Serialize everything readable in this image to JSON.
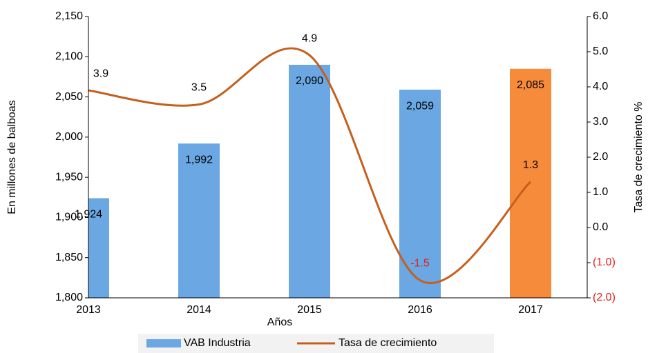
{
  "chart_data": {
    "type": "bar_line",
    "x_label": "Años",
    "y_label": "En millones de balboas",
    "y2_label": "Tasa de crecimiento %",
    "categories": [
      "2013",
      "2014",
      "2015",
      "2016",
      "2017"
    ],
    "ylim": [
      1800,
      2150
    ],
    "yticks": [
      {
        "value": 1800,
        "label": "1,800"
      },
      {
        "value": 1850,
        "label": "1,850"
      },
      {
        "value": 1900,
        "label": "1,900"
      },
      {
        "value": 1950,
        "label": "1,950"
      },
      {
        "value": 2000,
        "label": "2,000"
      },
      {
        "value": 2050,
        "label": "2,050"
      },
      {
        "value": 2100,
        "label": "2,100"
      },
      {
        "value": 2150,
        "label": "2,150"
      }
    ],
    "y2lim": [
      -2,
      6
    ],
    "y2ticks": [
      {
        "value": -2,
        "label": "(2.0)"
      },
      {
        "value": -1,
        "label": "(1.0)"
      },
      {
        "value": 0,
        "label": "0.0"
      },
      {
        "value": 1,
        "label": "1.0"
      },
      {
        "value": 2,
        "label": "2.0"
      },
      {
        "value": 3,
        "label": "3.0"
      },
      {
        "value": 4,
        "label": "4.0"
      },
      {
        "value": 5,
        "label": "5.0"
      },
      {
        "value": 6,
        "label": "6.0"
      }
    ],
    "negative_color": "#e0201b",
    "series": [
      {
        "name": "VAB Industria",
        "type": "bar",
        "color": "#6aa7e3",
        "colors": [
          "#6aa7e3",
          "#6aa7e3",
          "#6aa7e3",
          "#6aa7e3",
          "#f78b3c"
        ],
        "values": [
          1924,
          1992,
          2090,
          2059,
          2085
        ],
        "value_labels": [
          "1,924",
          "1,992",
          "2,090",
          "2,059",
          "2,085"
        ]
      },
      {
        "name": "Tasa de crecimiento",
        "type": "line",
        "axis": "y2",
        "color": "#c55f1c",
        "smooth": true,
        "values": [
          3.9,
          3.5,
          4.9,
          -1.5,
          1.3
        ]
      }
    ]
  }
}
